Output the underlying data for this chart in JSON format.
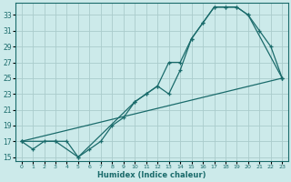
{
  "xlabel": "Humidex (Indice chaleur)",
  "bg_color": "#cceaea",
  "grid_color": "#aacccc",
  "line_color": "#1a6b6b",
  "xlim": [
    -0.5,
    23.5
  ],
  "ylim": [
    14.5,
    34.5
  ],
  "xticks": [
    0,
    1,
    2,
    3,
    4,
    5,
    6,
    7,
    8,
    9,
    10,
    11,
    12,
    13,
    14,
    15,
    16,
    17,
    18,
    19,
    20,
    21,
    22,
    23
  ],
  "yticks": [
    15,
    17,
    19,
    21,
    23,
    25,
    27,
    29,
    31,
    33
  ],
  "curve1_x": [
    0,
    1,
    2,
    3,
    4,
    5,
    6,
    7,
    8,
    9,
    10,
    11,
    12,
    13,
    14,
    15,
    16,
    17,
    18,
    19,
    20,
    21,
    22,
    23
  ],
  "curve1_y": [
    17,
    16,
    17,
    17,
    17,
    15,
    16,
    17,
    19,
    20,
    22,
    23,
    24,
    27,
    27,
    30,
    32,
    34,
    34,
    34,
    33,
    31,
    29,
    25
  ],
  "curve2_x": [
    0,
    3,
    5,
    10,
    11,
    12,
    13,
    14,
    15,
    16,
    17,
    18,
    19,
    20,
    23
  ],
  "curve2_y": [
    17,
    17,
    15,
    22,
    23,
    24,
    23,
    26,
    30,
    32,
    34,
    34,
    34,
    33,
    25
  ],
  "curve3_x": [
    0,
    23
  ],
  "curve3_y": [
    17,
    25
  ]
}
